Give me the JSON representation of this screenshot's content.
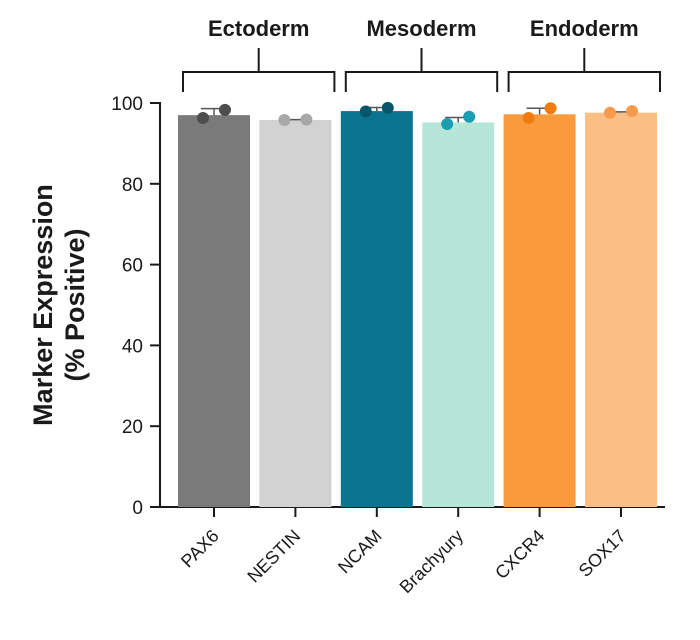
{
  "chart_data": {
    "type": "bar",
    "title": "",
    "xlabel": "",
    "ylabel_lines": [
      "Marker Expression",
      "(% Positive)"
    ],
    "ylim": [
      0,
      100
    ],
    "yticks": [
      0,
      20,
      40,
      60,
      80,
      100
    ],
    "groups": [
      {
        "label": "Ectoderm",
        "categories": [
          "PAX6",
          "NESTIN"
        ]
      },
      {
        "label": "Mesoderm",
        "categories": [
          "NCAM",
          "Brachyury"
        ]
      },
      {
        "label": "Endoderm",
        "categories": [
          "CXCR4",
          "SOX17"
        ]
      }
    ],
    "categories": [
      "PAX6",
      "NESTIN",
      "NCAM",
      "Brachyury",
      "CXCR4",
      "SOX17"
    ],
    "values": [
      97,
      95.8,
      98,
      95.2,
      97.2,
      97.6
    ],
    "replicates": [
      [
        96.3,
        98.3
      ],
      [
        95.8,
        95.9
      ],
      [
        97.9,
        98.8
      ],
      [
        94.8,
        96.6
      ],
      [
        96.3,
        98.7
      ],
      [
        97.6,
        98.0
      ]
    ],
    "error_high": [
      98.6,
      95.9,
      98.9,
      96.4,
      98.7,
      97.8
    ],
    "bar_colors": [
      "#7a7a7a",
      "#d2d2d2",
      "#0b7590",
      "#b5e6d8",
      "#f99b3c",
      "#fbbe85"
    ],
    "point_colors": [
      "#4d4d4d",
      "#a8a8a8",
      "#07566b",
      "#1b9db2",
      "#f07b0e",
      "#f79a4b"
    ],
    "grid": false,
    "legend": "none"
  }
}
